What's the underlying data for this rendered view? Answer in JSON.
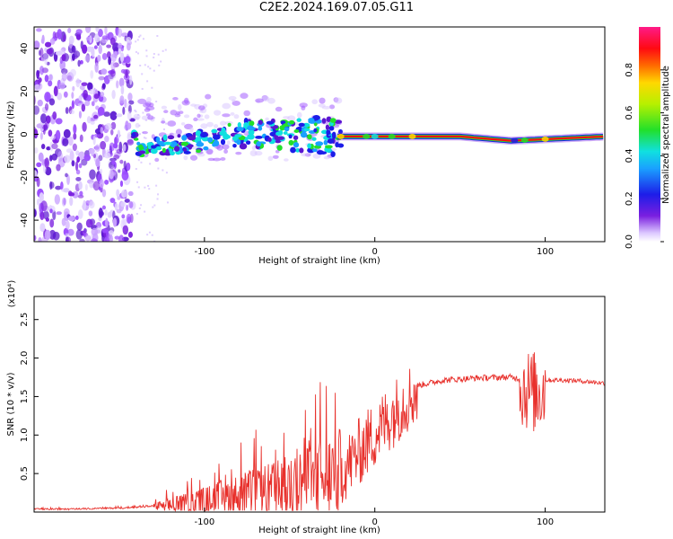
{
  "title": "C2E2.2024.169.07.05.G11",
  "chart_data": [
    {
      "type": "heatmap",
      "xlabel": "Height of straight line (km)",
      "ylabel": "Frequency (Hz)",
      "xlim": [
        -200,
        135
      ],
      "ylim": [
        -50,
        50
      ],
      "xticks": [
        -100,
        0,
        100
      ],
      "yticks": [
        -40,
        -20,
        0,
        20,
        40
      ],
      "colorbar": {
        "label": "Normalized spectral amplitude",
        "range": [
          0.0,
          1.0
        ],
        "ticks": [
          0.0,
          0.2,
          0.4,
          0.6,
          0.8
        ],
        "colormap": "rainbow (purple-blue-cyan-green-yellow-red-pink)"
      },
      "ridge_frequency_hz": [
        {
          "x": -140,
          "y": -7
        },
        {
          "x": -110,
          "y": -4
        },
        {
          "x": -80,
          "y": 0
        },
        {
          "x": -50,
          "y": 0
        },
        {
          "x": -25,
          "y": -1
        },
        {
          "x": 0,
          "y": -1
        },
        {
          "x": 50,
          "y": -1
        },
        {
          "x": 80,
          "y": -3
        },
        {
          "x": 135,
          "y": -1
        }
      ]
    },
    {
      "type": "line",
      "xlabel": "Height of straight line (km)",
      "ylabel": "SNR (10 * v/v)",
      "yscale_label": "(x10⁴)",
      "xlim": [
        -200,
        135
      ],
      "ylim": [
        0,
        2.8
      ],
      "xticks": [
        -100,
        0,
        100
      ],
      "yticks": [
        0.5,
        1.0,
        1.5,
        2.0,
        2.5
      ],
      "line_color": "#e8312c",
      "series": [
        {
          "x": [
            -200,
            -180,
            -160,
            -140,
            -130,
            -120,
            -110,
            -100,
            -90,
            -80,
            -70,
            -60,
            -50,
            -40,
            -30,
            -20,
            -15,
            -10,
            0,
            10,
            20,
            25,
            40,
            60,
            80,
            85,
            90,
            95,
            97,
            100,
            110,
            120,
            135
          ],
          "y": [
            0.04,
            0.04,
            0.05,
            0.06,
            0.08,
            0.1,
            0.13,
            0.17,
            0.22,
            0.26,
            0.3,
            0.33,
            0.4,
            0.48,
            0.55,
            0.62,
            0.72,
            0.85,
            1.1,
            1.35,
            1.58,
            1.65,
            1.72,
            1.75,
            1.76,
            1.74,
            1.7,
            1.65,
            1.7,
            1.72,
            1.72,
            1.71,
            1.68
          ]
        }
      ]
    }
  ]
}
